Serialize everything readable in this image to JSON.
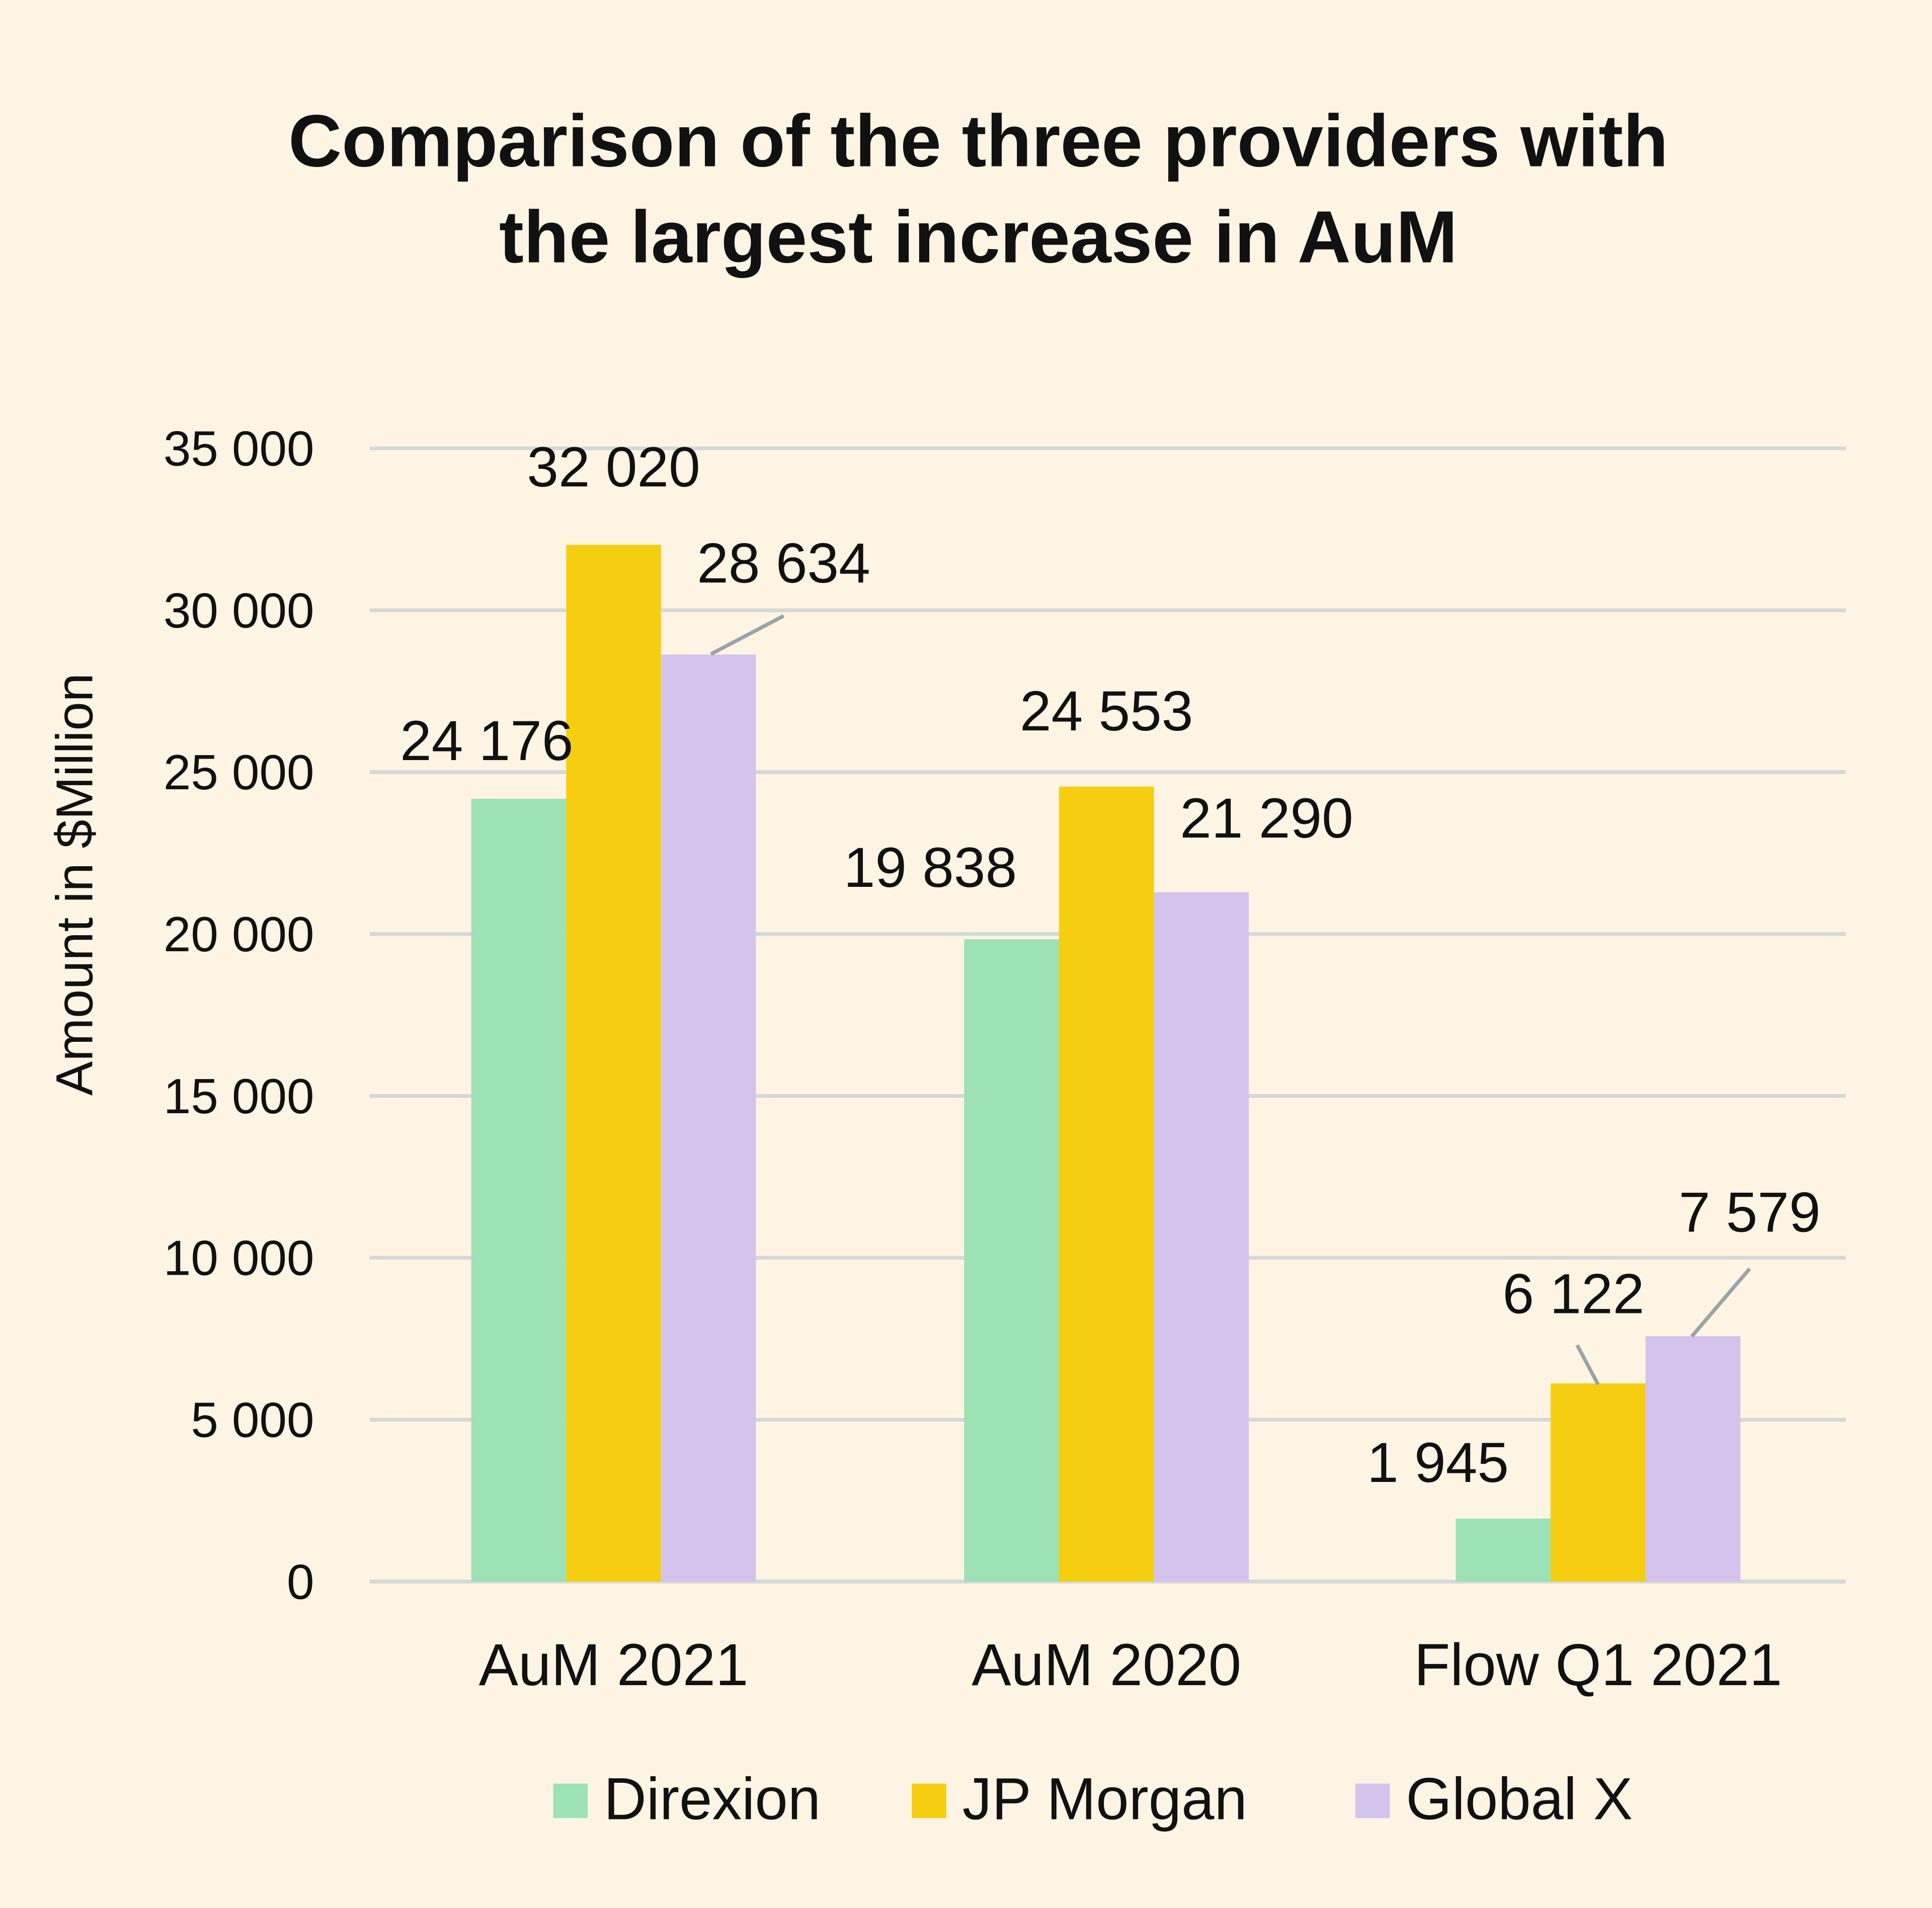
{
  "chart_data": {
    "type": "bar",
    "title": [
      "Comparison of the three providers with",
      "the largest increase in AuM"
    ],
    "xlabel": "",
    "ylabel": "Amount in $Million",
    "ylim": [
      0,
      35000
    ],
    "yticks": [
      "0",
      "5 000",
      "10 000",
      "15 000",
      "20 000",
      "25 000",
      "30 000",
      "35 000"
    ],
    "grid": true,
    "legend_position": "bottom",
    "categories": [
      "AuM 2021",
      "AuM 2020",
      "Flow Q1 2021"
    ],
    "series": [
      {
        "name": "Direxion",
        "color": "#9CE2B4",
        "values": [
          24176,
          19838,
          1945
        ],
        "labels": [
          "24 176",
          "19 838",
          "1 945"
        ]
      },
      {
        "name": "JP Morgan",
        "color": "#F5CE12",
        "values": [
          32020,
          24553,
          6122
        ],
        "labels": [
          "32 020",
          "24 553",
          "6 122"
        ]
      },
      {
        "name": "Global X",
        "color": "#D4C3EC",
        "values": [
          28634,
          21290,
          7579
        ],
        "labels": [
          "28 634",
          "21 290",
          "7 579"
        ]
      }
    ],
    "colors": {
      "background": "#FDF4E4",
      "grid": "#D3D8D8",
      "leader": "#9AA3A6"
    }
  }
}
